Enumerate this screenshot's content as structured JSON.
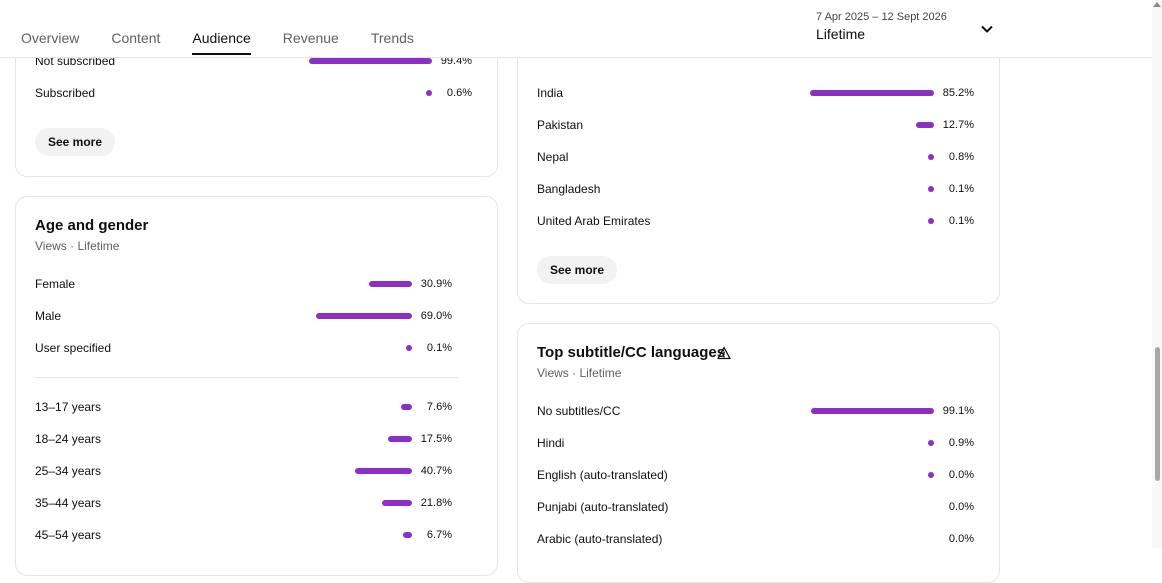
{
  "header": {
    "tabs": [
      "Overview",
      "Content",
      "Audience",
      "Revenue",
      "Trends"
    ],
    "active_tab": "Audience",
    "date_range": "7 Apr 2025 – 12 Sept 2026",
    "date_preset": "Lifetime"
  },
  "colors": {
    "bar": "#8c2fc6",
    "accent": "#0f0f0f"
  },
  "subscription": {
    "rows": [
      {
        "label": "Not subscribed",
        "value": "99.4%",
        "pct": 99.4
      },
      {
        "label": "Subscribed",
        "value": "0.6%",
        "pct": 0.6
      }
    ],
    "see_more": "See more"
  },
  "age_gender": {
    "title": "Age and gender",
    "subtitle": "Views · Lifetime",
    "gender_rows": [
      {
        "label": "Female",
        "value": "30.9%",
        "pct": 30.9
      },
      {
        "label": "Male",
        "value": "69.0%",
        "pct": 69.0
      },
      {
        "label": "User specified",
        "value": "0.1%",
        "pct": 0.1
      }
    ],
    "age_rows": [
      {
        "label": "13–17 years",
        "value": "7.6%",
        "pct": 7.6
      },
      {
        "label": "18–24 years",
        "value": "17.5%",
        "pct": 17.5
      },
      {
        "label": "25–34 years",
        "value": "40.7%",
        "pct": 40.7
      },
      {
        "label": "35–44 years",
        "value": "21.8%",
        "pct": 21.8
      },
      {
        "label": "45–54 years",
        "value": "6.7%",
        "pct": 6.7
      }
    ]
  },
  "geography": {
    "rows": [
      {
        "label": "India",
        "value": "85.2%",
        "pct": 85.2
      },
      {
        "label": "Pakistan",
        "value": "12.7%",
        "pct": 12.7
      },
      {
        "label": "Nepal",
        "value": "0.8%",
        "pct": 0.8
      },
      {
        "label": "Bangladesh",
        "value": "0.1%",
        "pct": 0.1
      },
      {
        "label": "United Arab Emirates",
        "value": "0.1%",
        "pct": 0.1
      }
    ],
    "see_more": "See more"
  },
  "subtitles": {
    "title": "Top subtitle/CC languages",
    "subtitle": "Views · Lifetime",
    "rows": [
      {
        "label": "No subtitles/CC",
        "value": "99.1%",
        "pct": 99.1
      },
      {
        "label": "Hindi",
        "value": "0.9%",
        "pct": 0.9
      },
      {
        "label": "English (auto-translated)",
        "value": "0.0%",
        "pct": 0.05
      },
      {
        "label": "Punjabi (auto-translated)",
        "value": "0.0%",
        "pct": 0
      },
      {
        "label": "Arabic (auto-translated)",
        "value": "0.0%",
        "pct": 0
      }
    ]
  }
}
